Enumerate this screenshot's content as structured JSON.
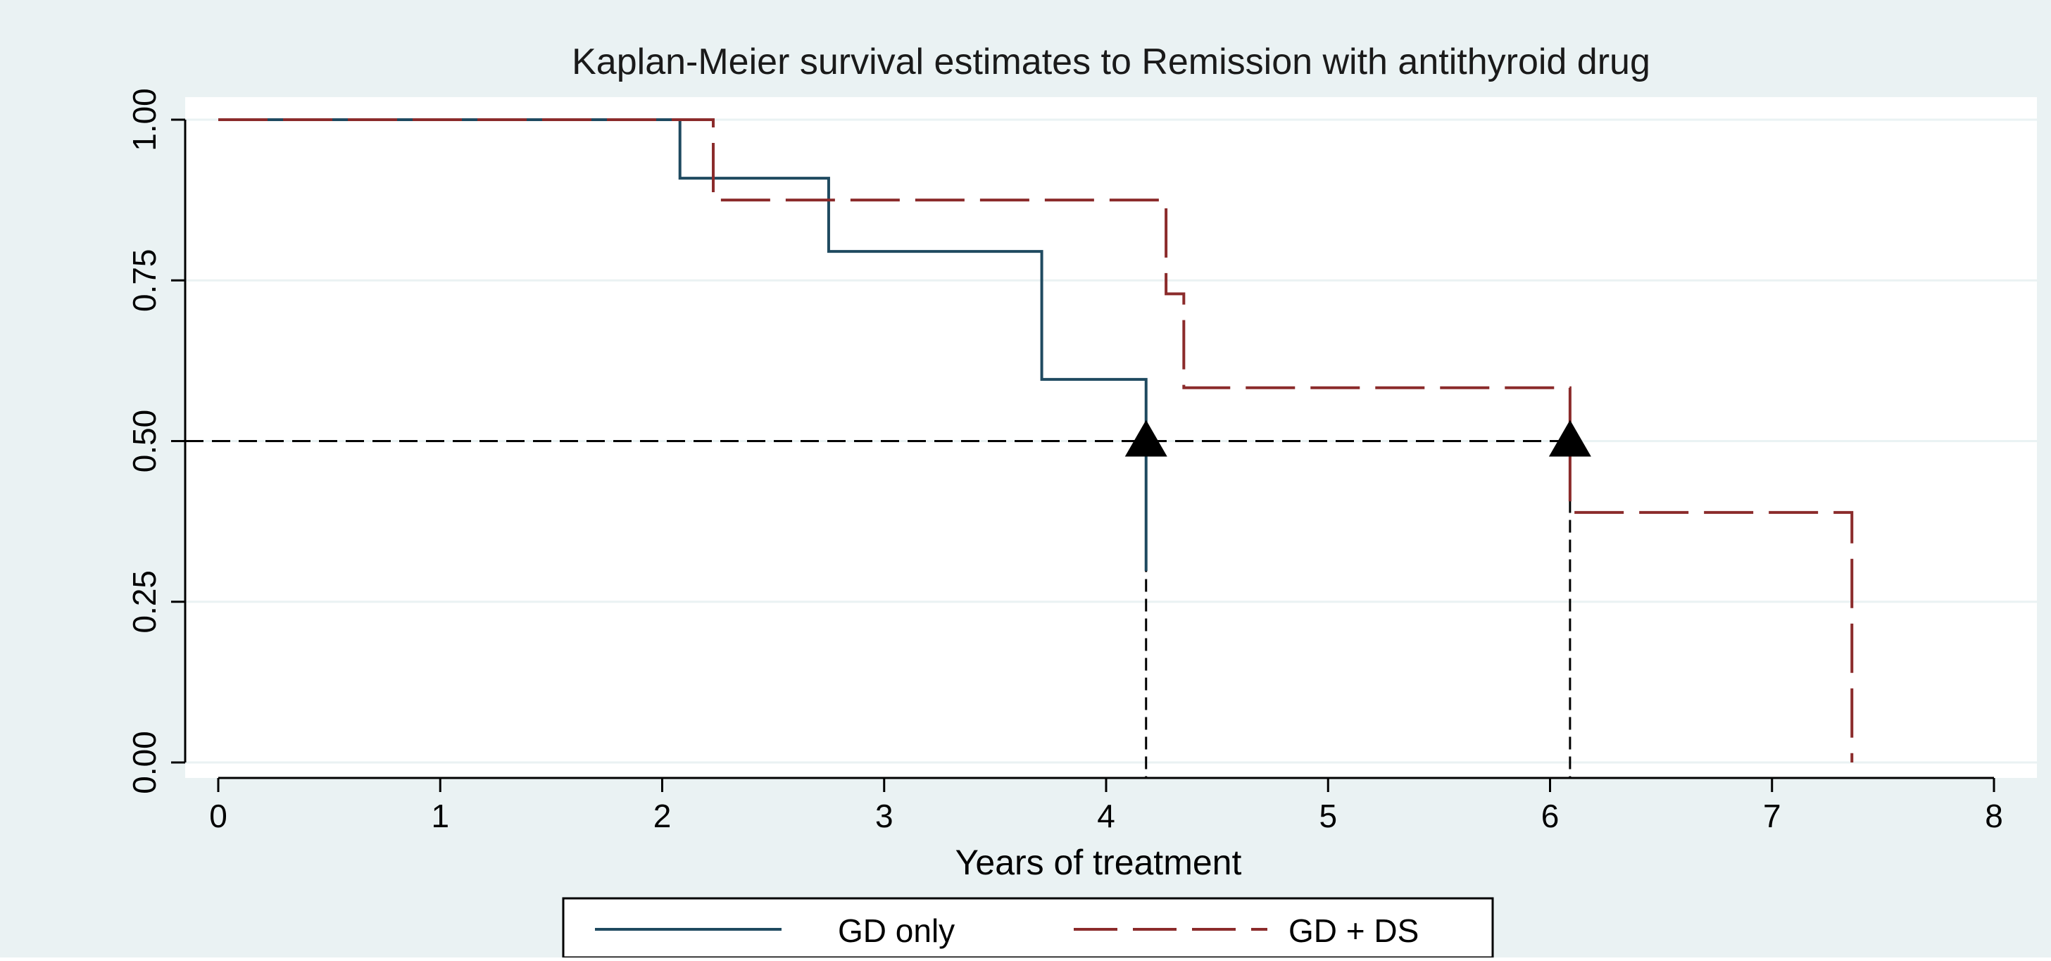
{
  "chart_data": {
    "type": "line",
    "title": "Kaplan-Meier survival estimates to Remission with antithyroid drug",
    "xlabel": "Years of treatment",
    "ylabel": "",
    "xlim": [
      0,
      8
    ],
    "ylim": [
      0,
      1
    ],
    "xticks": [
      "0",
      "1",
      "2",
      "3",
      "4",
      "5",
      "6",
      "7",
      "8"
    ],
    "yticks": [
      "0.00",
      "0.25",
      "0.50",
      "0.75",
      "1.00"
    ],
    "grid": "horizontal",
    "legend_position": "bottom",
    "series": [
      {
        "name": "GD only",
        "color": "#1f4a60",
        "style": "solid",
        "steps": [
          [
            0,
            1.0
          ],
          [
            2.08,
            0.909
          ],
          [
            2.75,
            0.795
          ],
          [
            3.71,
            0.596
          ],
          [
            4.18,
            0.298
          ]
        ]
      },
      {
        "name": "GD + DS",
        "color": "#8b2b2b",
        "style": "dashed",
        "steps": [
          [
            0,
            1.0
          ],
          [
            2.23,
            0.875
          ],
          [
            4.27,
            0.729
          ],
          [
            4.35,
            0.583
          ],
          [
            6.09,
            0.389
          ],
          [
            7.36,
            0.0
          ]
        ]
      }
    ],
    "median_line": {
      "y": 0.5,
      "x_values": [
        4.18,
        6.09
      ],
      "marker": "triangle"
    }
  },
  "colors": {
    "outer_background": "#eaf2f3",
    "plot_background": "#ffffff",
    "grid": "#eaf2f3",
    "axis": "#000000"
  }
}
